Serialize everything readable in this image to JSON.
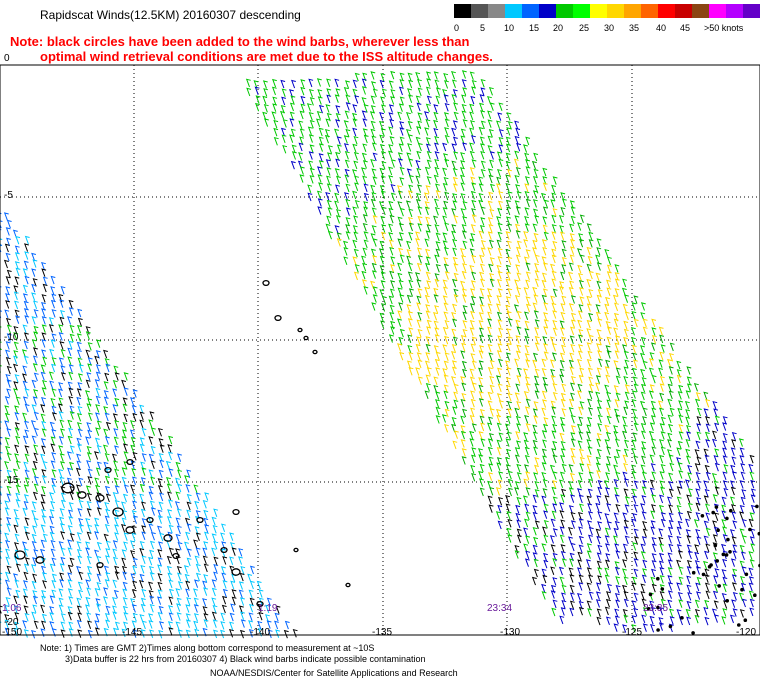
{
  "header": {
    "title": "Rapidscat Winds(12.5KM) 20160307 descending",
    "note_line_1": "Note: black circles have been added to the wind barbs, wherever less than",
    "note_line_2": "optimal wind retrieval conditions are met due to the ISS altitude changes."
  },
  "legend": {
    "colors": [
      "#000000",
      "#555555",
      "#888888",
      "#00c8ff",
      "#0064ff",
      "#0000c8",
      "#00c800",
      "#00ff00",
      "#ffff00",
      "#ffd700",
      "#ffa500",
      "#ff6400",
      "#ff0000",
      "#c80000",
      "#8b4513",
      "#ff00ff",
      "#b400ff",
      "#6400c8"
    ],
    "labels": [
      "0",
      "5",
      "10",
      "15",
      "20",
      "25",
      "30",
      "35",
      "40",
      "45",
      ">50 knots"
    ]
  },
  "map": {
    "lon_labels": [
      "-150",
      "-145",
      "-140",
      "-135",
      "-130",
      "-125",
      "-120"
    ],
    "lat_labels": [
      "0",
      "-5",
      "-10",
      "-15",
      "-20"
    ],
    "time_labels": [
      "1:06",
      "1:19",
      "23:34",
      "23:35"
    ]
  },
  "footer": {
    "line_1": "Note: 1) Times are GMT 2)Times along bottom correspond to measurement at ~10S",
    "line_2": "3)Data buffer is 22 hrs from 20160307 4) Black wind barbs indicate possible contamination",
    "credit": "NOAA/NESDIS/Center for Satellite Applications and Research"
  }
}
